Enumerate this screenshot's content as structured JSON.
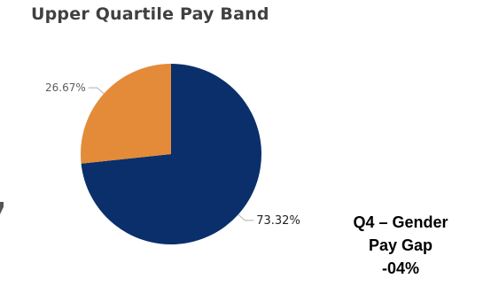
{
  "chart_data": {
    "type": "pie",
    "title": "Upper Quartile Pay Band",
    "slices": [
      {
        "label": "73.32%",
        "value": 73.32,
        "color": "#0b2f6b"
      },
      {
        "label": "26.67%",
        "value": 26.67,
        "color": "#e38b39"
      }
    ],
    "legend": "none"
  },
  "note": {
    "line1": "Q4 – Gender",
    "line2": "Pay Gap",
    "line3": "-04%"
  }
}
